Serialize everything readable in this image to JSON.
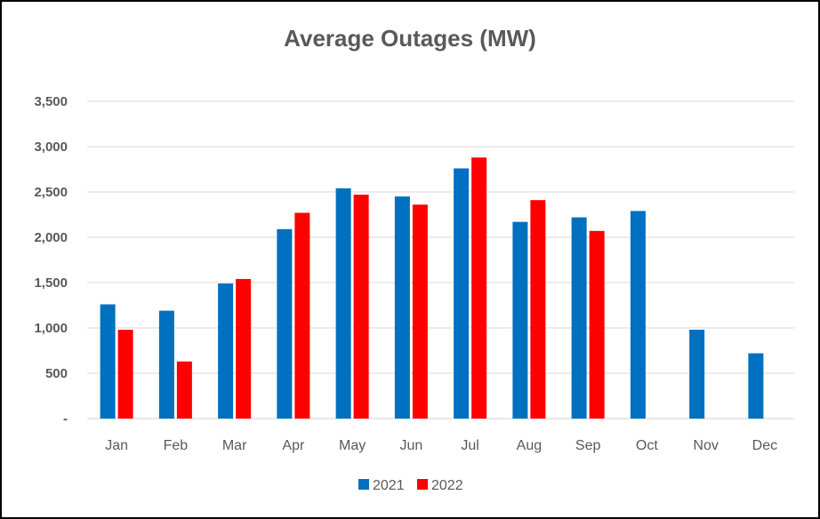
{
  "chart_data": {
    "type": "bar",
    "title": "Average Outages (MW)",
    "xlabel": "",
    "ylabel": "",
    "categories": [
      "Jan",
      "Feb",
      "Mar",
      "Apr",
      "May",
      "Jun",
      "Jul",
      "Aug",
      "Sep",
      "Oct",
      "Nov",
      "Dec"
    ],
    "series": [
      {
        "name": "2021",
        "color": "#0070c0",
        "values": [
          1260,
          1190,
          1490,
          2090,
          2540,
          2450,
          2760,
          2170,
          2220,
          2290,
          980,
          720
        ]
      },
      {
        "name": "2022",
        "color": "#ff0000",
        "values": [
          980,
          630,
          1540,
          2270,
          2470,
          2360,
          2880,
          2410,
          2070,
          null,
          null,
          null
        ]
      }
    ],
    "ylim": [
      0,
      3500
    ],
    "yticks": [
      0,
      500,
      1000,
      1500,
      2000,
      2500,
      3000,
      3500
    ],
    "ytick_labels": [
      "-",
      "500",
      "1,000",
      "1,500",
      "2,000",
      "2,500",
      "3,000",
      "3,500"
    ],
    "grid": true,
    "legend_position": "bottom"
  }
}
